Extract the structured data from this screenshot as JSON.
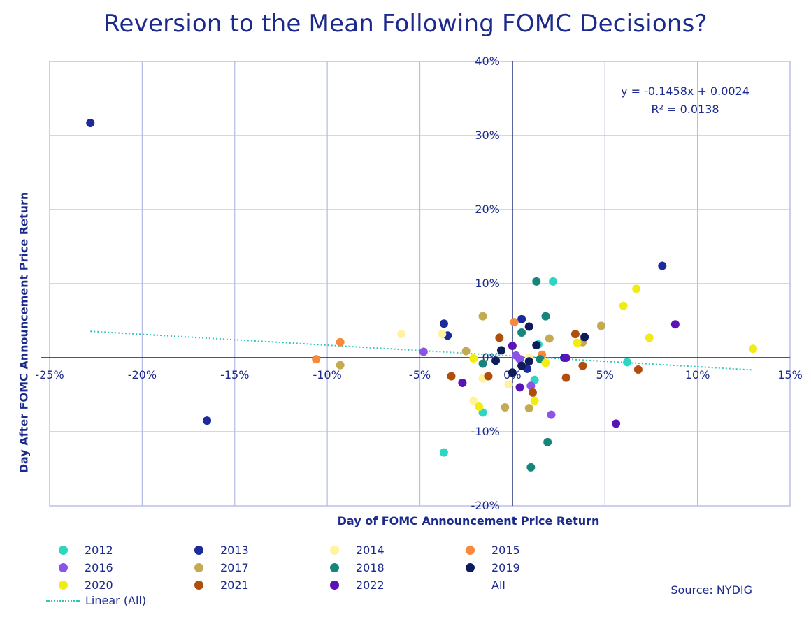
{
  "chart_data": {
    "type": "scatter",
    "title": "Reversion to the Mean Following FOMC Decisions?",
    "xlabel": "Day of FOMC Announcement Price Return",
    "ylabel": "Day After FOMC Announcement Price Return",
    "xlim": [
      -25,
      15
    ],
    "ylim": [
      -20,
      40
    ],
    "xticks": [
      "-25%",
      "-20%",
      "-15%",
      "-10%",
      "-5%",
      "0%",
      "5%",
      "10%",
      "15%"
    ],
    "yticks": [
      "-20%",
      "-10%",
      "0%",
      "10%",
      "20%",
      "30%",
      "40%"
    ],
    "grid": true,
    "trendline": {
      "name": "Linear (All)",
      "equation": "y = -0.1458x + 0.0024",
      "r_squared": "R² = 0.0138",
      "slope": -0.1458,
      "intercept": 0.24,
      "x_range": [
        -22.8,
        13.0
      ],
      "color": "#2ec5bd"
    },
    "source": "Source: NYDIG",
    "series": [
      {
        "name": "2012",
        "color": "#2ed6c2",
        "points": [
          [
            2.2,
            10.3
          ],
          [
            6.2,
            -0.6
          ],
          [
            1.2,
            -3.0
          ],
          [
            -1.6,
            -7.4
          ],
          [
            -3.7,
            -12.8
          ],
          [
            1.4,
            1.8
          ]
        ]
      },
      {
        "name": "2013",
        "color": "#1c2a9c",
        "points": [
          [
            -22.8,
            31.7
          ],
          [
            -16.5,
            -8.5
          ],
          [
            8.1,
            12.4
          ],
          [
            -3.7,
            4.6
          ],
          [
            -3.5,
            3.0
          ],
          [
            0.5,
            5.2
          ],
          [
            0.8,
            -1.5
          ],
          [
            2.8,
            0.0
          ]
        ]
      },
      {
        "name": "2014",
        "color": "#fff3a0",
        "points": [
          [
            -6.0,
            3.2
          ],
          [
            -3.8,
            3.2
          ],
          [
            -2.1,
            -5.8
          ],
          [
            -1.6,
            -2.8
          ],
          [
            -0.2,
            -3.6
          ],
          [
            0.9,
            0.0
          ],
          [
            1.6,
            0.3
          ]
        ]
      },
      {
        "name": "2015",
        "color": "#f7893a",
        "points": [
          [
            -10.6,
            -0.2
          ],
          [
            -9.3,
            2.1
          ],
          [
            0.1,
            4.8
          ],
          [
            1.6,
            0.4
          ]
        ]
      },
      {
        "name": "2016",
        "color": "#8c54e6",
        "points": [
          [
            -4.8,
            0.8
          ],
          [
            0.4,
            -0.2
          ],
          [
            1.0,
            -3.8
          ],
          [
            2.1,
            -7.7
          ],
          [
            0.2,
            0.3
          ]
        ]
      },
      {
        "name": "2017",
        "color": "#c4ab52",
        "points": [
          [
            -1.6,
            5.6
          ],
          [
            -9.3,
            -1.0
          ],
          [
            -2.5,
            0.9
          ],
          [
            -0.4,
            -6.7
          ],
          [
            0.9,
            -6.8
          ],
          [
            2.0,
            2.6
          ],
          [
            4.8,
            4.3
          ],
          [
            3.8,
            2.1
          ]
        ]
      },
      {
        "name": "2018",
        "color": "#16857a",
        "points": [
          [
            1.3,
            10.3
          ],
          [
            1.8,
            5.6
          ],
          [
            0.5,
            3.4
          ],
          [
            -1.6,
            -0.8
          ],
          [
            1.9,
            -11.4
          ],
          [
            1.0,
            -14.8
          ],
          [
            1.5,
            -0.2
          ]
        ]
      },
      {
        "name": "2019",
        "color": "#0f1c5c",
        "points": [
          [
            -0.6,
            1.0
          ],
          [
            0.9,
            4.2
          ],
          [
            1.3,
            1.7
          ],
          [
            3.9,
            2.8
          ],
          [
            -0.9,
            -0.4
          ],
          [
            0.5,
            -1.1
          ],
          [
            0.0,
            -2.0
          ],
          [
            0.9,
            -0.5
          ]
        ]
      },
      {
        "name": "2020",
        "color": "#f2ec12",
        "points": [
          [
            13.0,
            1.2
          ],
          [
            6.7,
            9.3
          ],
          [
            6.0,
            7.0
          ],
          [
            7.4,
            2.7
          ],
          [
            3.5,
            2.0
          ],
          [
            1.2,
            -5.8
          ],
          [
            -1.8,
            -6.6
          ],
          [
            -2.1,
            -0.1
          ],
          [
            1.8,
            -0.7
          ]
        ]
      },
      {
        "name": "2021",
        "color": "#b04e0c",
        "points": [
          [
            -0.7,
            2.7
          ],
          [
            -3.3,
            -2.5
          ],
          [
            -1.3,
            -2.5
          ],
          [
            1.1,
            -4.7
          ],
          [
            3.4,
            3.2
          ],
          [
            3.8,
            -1.1
          ],
          [
            6.8,
            -1.6
          ],
          [
            2.9,
            -2.7
          ]
        ]
      },
      {
        "name": "2022",
        "color": "#5a13b8",
        "points": [
          [
            8.8,
            4.5
          ],
          [
            5.6,
            -8.9
          ],
          [
            -2.7,
            -3.4
          ],
          [
            0.0,
            1.6
          ],
          [
            0.4,
            -4.0
          ],
          [
            2.9,
            0.0
          ]
        ]
      }
    ],
    "legend_extra": "All"
  }
}
